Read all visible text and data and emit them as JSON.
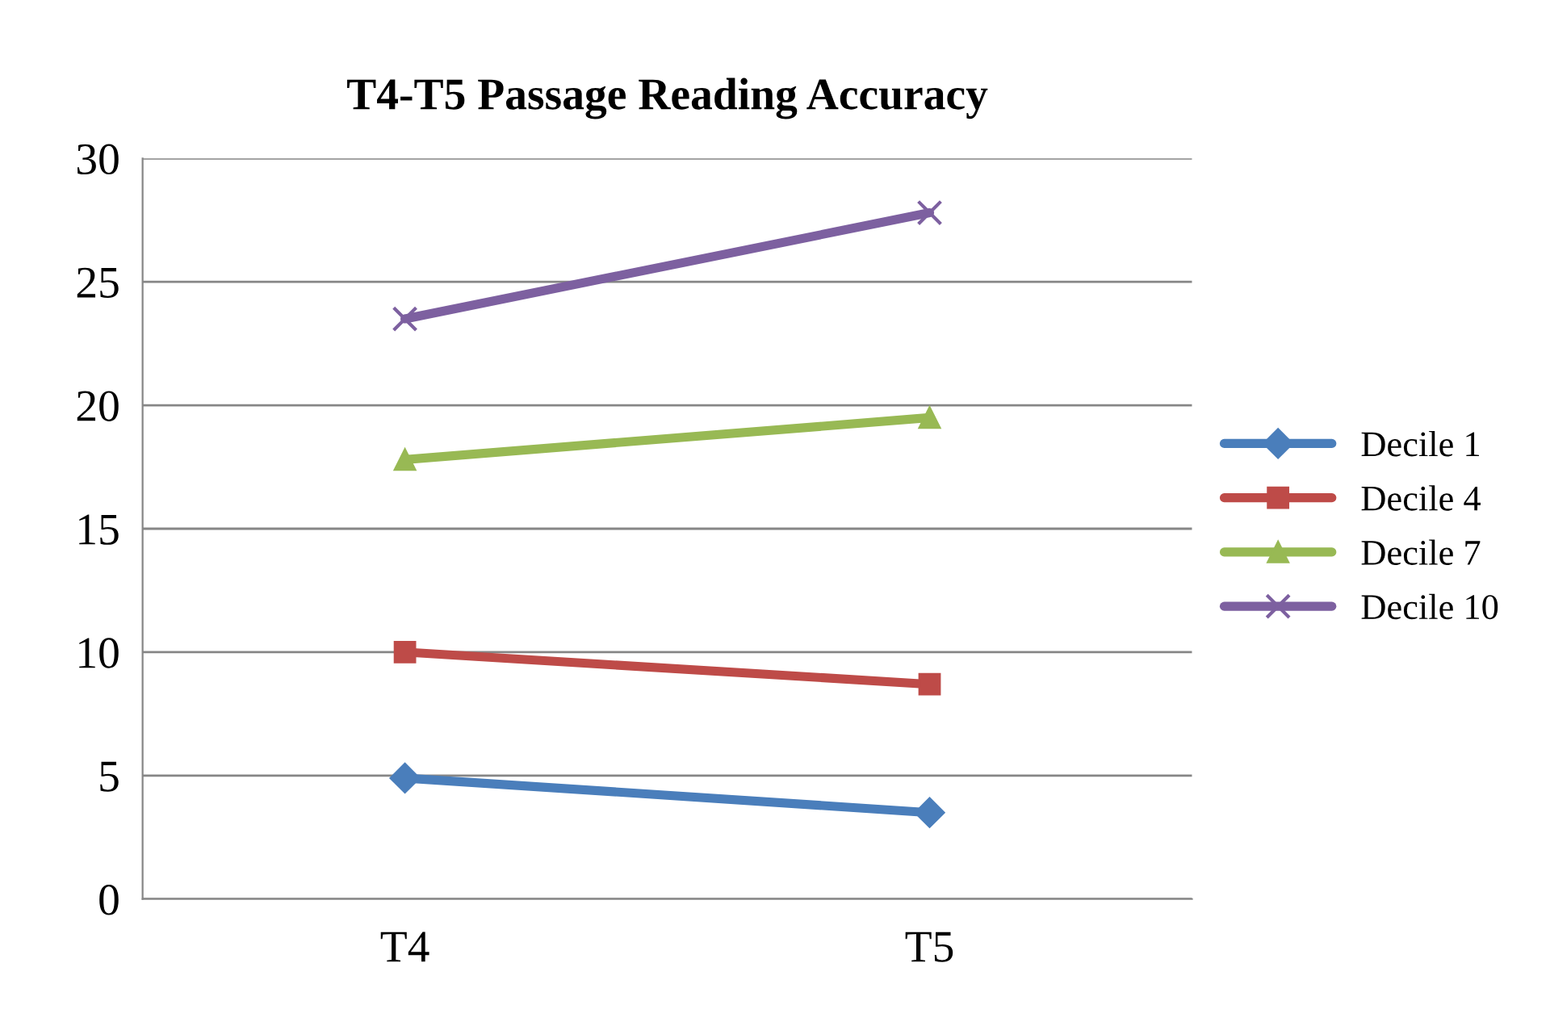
{
  "chart_data": {
    "type": "line",
    "title": "T4-T5 Passage Reading Accuracy",
    "categories": [
      "T4",
      "T5"
    ],
    "series": [
      {
        "name": "Decile 1",
        "color": "#4a7ebb",
        "marker": "diamond",
        "values": [
          4.9,
          3.5
        ]
      },
      {
        "name": "Decile 4",
        "color": "#be4b48",
        "marker": "square",
        "values": [
          10.0,
          8.7
        ]
      },
      {
        "name": "Decile 7",
        "color": "#98b954",
        "marker": "triangle",
        "values": [
          17.8,
          19.5
        ]
      },
      {
        "name": "Decile 10",
        "color": "#7d60a0",
        "marker": "cross",
        "values": [
          23.5,
          27.8
        ]
      }
    ],
    "ylim": [
      0,
      30
    ],
    "yticks": [
      0,
      5,
      10,
      15,
      20,
      25,
      30
    ],
    "grid": "y",
    "legend": "right",
    "line_style": "solid"
  }
}
